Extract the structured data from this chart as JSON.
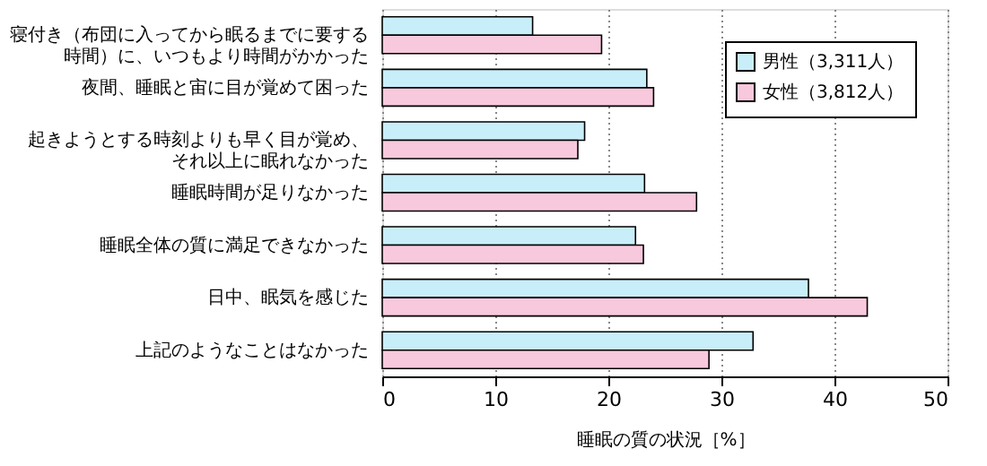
{
  "chart_data": {
    "type": "bar",
    "orientation": "horizontal",
    "xlabel": "睡眠の質の状況［%］",
    "categories": [
      "寝付き（布団に入ってから眠るまでに要する時間）に、いつもより時間がかかった",
      "夜間、睡眠と宙に目が覚めて困った",
      "起きようとする時刻よりも早く目が覚め、それ以上に眠れなかった",
      "睡眠時間が足りなかった",
      "睡眠全体の質に満足できなかった",
      "日中、眠気を感じた",
      "上記のようなことはなかった"
    ],
    "series": [
      {
        "name": "男性（3,311人）",
        "color": "#c8eefa",
        "values": [
          13.3,
          23.4,
          17.9,
          23.2,
          22.4,
          37.7,
          32.8
        ]
      },
      {
        "name": "女性（3,812人）",
        "color": "#f8c8dc",
        "values": [
          19.4,
          24.0,
          17.3,
          27.8,
          23.1,
          42.9,
          28.9
        ]
      }
    ],
    "xlim": [
      0,
      50
    ],
    "xticks": [
      0,
      10,
      20,
      30,
      40,
      50
    ],
    "grid": "x",
    "legend": "top right"
  }
}
